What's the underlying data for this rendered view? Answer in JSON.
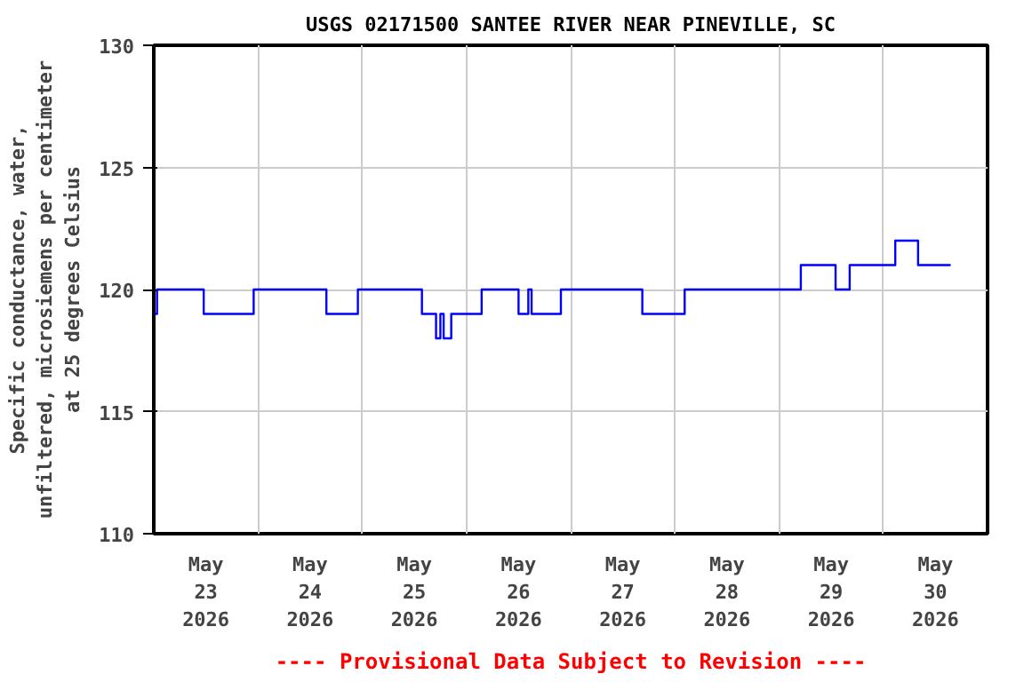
{
  "chart_data": {
    "type": "step",
    "title": "USGS 02171500 SANTEE RIVER NEAR PINEVILLE, SC",
    "ylabel": "Specific conductance, water,\nunfiltered, microsiemens per centimeter\nat 25 degrees Celsius",
    "annotations": [
      "---- Provisional Data Subject to Revision ----"
    ],
    "x": [
      "2026-05-23T00:15",
      "2026-05-23T00:45",
      "2026-05-23T11:30",
      "2026-05-23T23:00",
      "2026-05-24T15:45",
      "2026-05-24T23:00",
      "2026-05-25T13:45",
      "2026-05-25T17:00",
      "2026-05-25T18:00",
      "2026-05-25T18:45",
      "2026-05-25T20:30",
      "2026-05-26T03:30",
      "2026-05-26T12:00",
      "2026-05-26T14:15",
      "2026-05-26T15:00",
      "2026-05-26T21:45",
      "2026-05-27T16:30",
      "2026-05-28T02:15",
      "2026-05-29T05:00",
      "2026-05-29T13:00",
      "2026-05-29T16:15",
      "2026-05-30T02:45",
      "2026-05-30T08:00",
      "2026-05-30T15:30"
    ],
    "series": [
      {
        "color": "#0000ff",
        "values": [
          119,
          120,
          119,
          120,
          119,
          120,
          119,
          118,
          119,
          118,
          119,
          120,
          119,
          120,
          119,
          120,
          119,
          120,
          121,
          120,
          121,
          122,
          121,
          121
        ]
      }
    ],
    "xlim": [
      "2026-05-23T00:00",
      "2026-05-31T00:00"
    ],
    "xticks": [
      {
        "value": "2026-05-23T12:00",
        "label": "May\n23\n2026"
      },
      {
        "value": "2026-05-24T00:00",
        "label": null
      },
      {
        "value": "2026-05-24T12:00",
        "label": "May\n24\n2026"
      },
      {
        "value": "2026-05-25T00:00",
        "label": null
      },
      {
        "value": "2026-05-25T12:00",
        "label": "May\n25\n2026"
      },
      {
        "value": "2026-05-26T00:00",
        "label": null
      },
      {
        "value": "2026-05-26T12:00",
        "label": "May\n26\n2026"
      },
      {
        "value": "2026-05-27T00:00",
        "label": null
      },
      {
        "value": "2026-05-27T12:00",
        "label": "May\n27\n2026"
      },
      {
        "value": "2026-05-28T00:00",
        "label": null
      },
      {
        "value": "2026-05-28T12:00",
        "label": "May\n28\n2026"
      },
      {
        "value": "2026-05-29T00:00",
        "label": null
      },
      {
        "value": "2026-05-29T12:00",
        "label": "May\n29\n2026"
      },
      {
        "value": "2026-05-30T00:00",
        "label": null
      },
      {
        "value": "2026-05-30T12:00",
        "label": "May\n30\n2026"
      }
    ],
    "ylim": [
      110,
      130
    ],
    "yticks": [
      110,
      115,
      120,
      125,
      130
    ],
    "grid": true
  }
}
